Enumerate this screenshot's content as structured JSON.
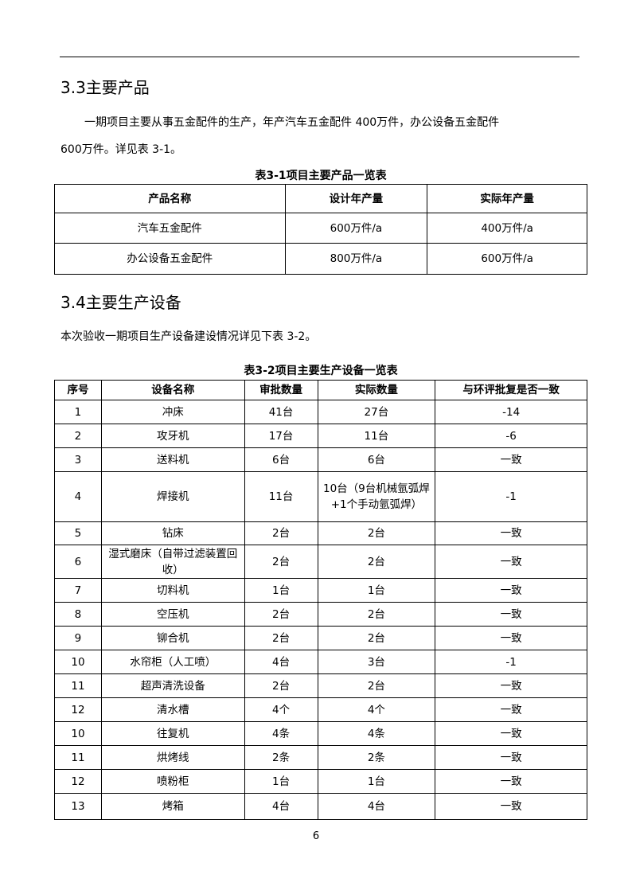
{
  "section_3_3": {
    "heading": "3.3主要产品",
    "para_line1": "一期项目主要从事五金配件的生产，年产汽车五金配件 400万件，办公设备五金配件",
    "para_line2": "600万件。详见表 3-1。"
  },
  "table_3_1": {
    "caption": "表3-1项目主要产品一览表",
    "headers": [
      "产品名称",
      "设计年产量",
      "实际年产量"
    ],
    "rows": [
      [
        "汽车五金配件",
        "600万件/a",
        "400万件/a"
      ],
      [
        "办公设备五金配件",
        "800万件/a",
        "600万件/a"
      ]
    ]
  },
  "section_3_4": {
    "heading": "3.4主要生产设备",
    "para": "本次验收一期项目生产设备建设情况详见下表 3-2。"
  },
  "table_3_2": {
    "caption": "表3-2项目主要生产设备一览表",
    "headers": [
      "序号",
      "设备名称",
      "审批数量",
      "实际数量",
      "与环评批复是否一致"
    ],
    "rows": [
      [
        "1",
        "冲床",
        "41台",
        "27台",
        "-14"
      ],
      [
        "2",
        "攻牙机",
        "17台",
        "11台",
        "-6"
      ],
      [
        "3",
        "送料机",
        "6台",
        "6台",
        "一致"
      ],
      [
        "4",
        "焊接机",
        "11台",
        "10台（9台机械氩弧焊+1个手动氩弧焊）",
        "-1"
      ],
      [
        "5",
        "钻床",
        "2台",
        "2台",
        "一致"
      ],
      [
        "6",
        "湿式磨床（自带过滤装置回收）",
        "2台",
        "2台",
        "一致"
      ],
      [
        "7",
        "切料机",
        "1台",
        "1台",
        "一致"
      ],
      [
        "8",
        "空压机",
        "2台",
        "2台",
        "一致"
      ],
      [
        "9",
        "铆合机",
        "2台",
        "2台",
        "一致"
      ],
      [
        "10",
        "水帘柜（人工喷）",
        "4台",
        "3台",
        "-1"
      ],
      [
        "11",
        "超声清洗设备",
        "2台",
        "2台",
        "一致"
      ],
      [
        "12",
        "清水槽",
        "4个",
        "4个",
        "一致"
      ],
      [
        "10",
        "往复机",
        "4条",
        "4条",
        "一致"
      ],
      [
        "11",
        "烘烤线",
        "2条",
        "2条",
        "一致"
      ],
      [
        "12",
        "喷粉柜",
        "1台",
        "1台",
        "一致"
      ],
      [
        "13",
        "烤箱",
        "4台",
        "4台",
        "一致"
      ]
    ]
  },
  "page_number": "6"
}
